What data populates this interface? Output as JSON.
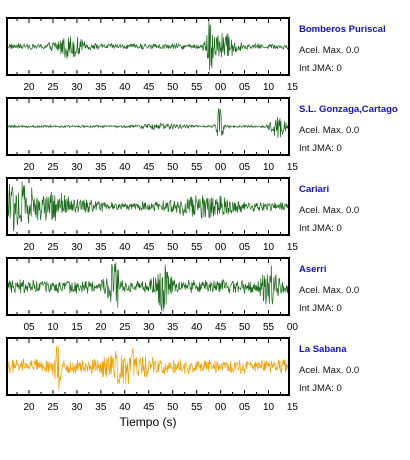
{
  "xlabel": "Tiempo (s)",
  "chart_data": [
    {
      "type": "line",
      "station": "Bomberos Puriscal",
      "accel_label": "Acel. Max. 0.0",
      "int_label": "Int JMA: 0",
      "color": "#1a6b1a",
      "tick_labels": [
        "20",
        "25",
        "30",
        "35",
        "40",
        "45",
        "50",
        "55",
        "00",
        "05",
        "10",
        "15"
      ],
      "envelope": {
        "base_amplitude": 0.12,
        "bursts": [
          {
            "at": 0.22,
            "width": 0.05,
            "amp": 0.35
          },
          {
            "at": 0.72,
            "width": 0.015,
            "amp": 0.95
          },
          {
            "at": 0.77,
            "width": 0.04,
            "amp": 0.45
          }
        ]
      }
    },
    {
      "type": "line",
      "station": "S.L. Gonzaga,Cartago",
      "accel_label": "Acel. Max. 0.0",
      "int_label": "Int JMA: 0",
      "color": "#1a6b1a",
      "tick_labels": [
        "20",
        "25",
        "30",
        "35",
        "40",
        "45",
        "50",
        "55",
        "00",
        "05",
        "10",
        "15"
      ],
      "envelope": {
        "base_amplitude": 0.05,
        "bursts": [
          {
            "at": 0.55,
            "width": 0.08,
            "amp": 0.08
          },
          {
            "at": 0.755,
            "width": 0.012,
            "amp": 0.95
          },
          {
            "at": 0.96,
            "width": 0.025,
            "amp": 0.45
          }
        ]
      }
    },
    {
      "type": "line",
      "station": "Cariari",
      "accel_label": "Acel. Max. 0.0",
      "int_label": "Int JMA: 0",
      "color": "#1a6b1a",
      "tick_labels": [
        "20",
        "25",
        "30",
        "35",
        "40",
        "45",
        "50",
        "55",
        "00",
        "05",
        "10",
        "15"
      ],
      "envelope": {
        "base_amplitude": 0.2,
        "bursts": [
          {
            "at": 0.02,
            "width": 0.06,
            "amp": 0.95
          },
          {
            "at": 0.15,
            "width": 0.1,
            "amp": 0.4
          },
          {
            "at": 0.7,
            "width": 0.1,
            "amp": 0.3
          }
        ]
      }
    },
    {
      "type": "line",
      "station": "Aserri",
      "accel_label": "Acel. Max. 0.0",
      "int_label": "Int JMA: 0",
      "color": "#1a6b1a",
      "tick_labels": [
        "05",
        "10",
        "15",
        "20",
        "25",
        "30",
        "35",
        "40",
        "45",
        "50",
        "55",
        "00"
      ],
      "envelope": {
        "base_amplitude": 0.28,
        "bursts": [
          {
            "at": 0.38,
            "width": 0.02,
            "amp": 0.9
          },
          {
            "at": 0.55,
            "width": 0.03,
            "amp": 0.75
          },
          {
            "at": 0.93,
            "width": 0.03,
            "amp": 0.6
          }
        ]
      }
    },
    {
      "type": "line",
      "station": "La Sabana",
      "accel_label": "Acel. Max. 0.0",
      "int_label": "Int JMA: 0",
      "color": "#f0a000",
      "tick_labels": [
        "20",
        "25",
        "30",
        "35",
        "40",
        "45",
        "50",
        "55",
        "00",
        "05",
        "10",
        "15"
      ],
      "envelope": {
        "base_amplitude": 0.3,
        "bursts": [
          {
            "at": 0.18,
            "width": 0.01,
            "amp": 0.95
          },
          {
            "at": 0.42,
            "width": 0.08,
            "amp": 0.45
          }
        ]
      }
    }
  ]
}
